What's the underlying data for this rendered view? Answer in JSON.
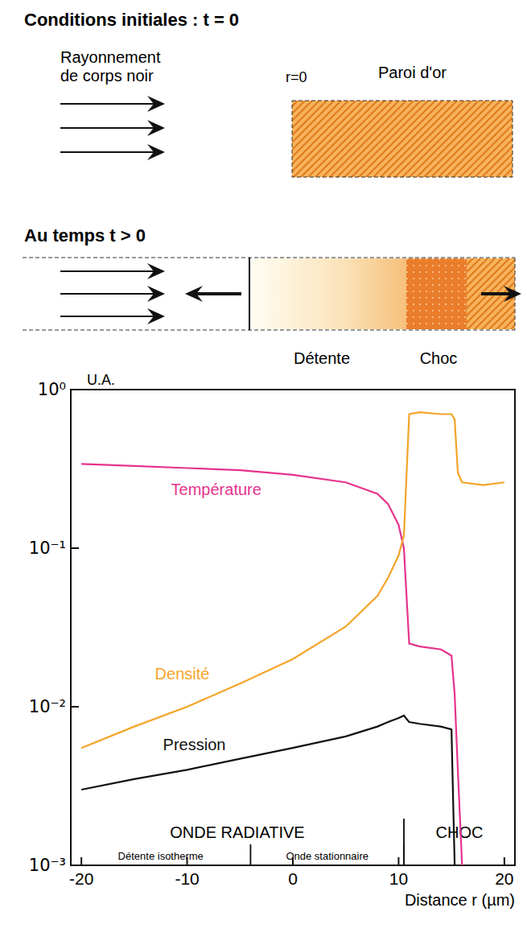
{
  "diagram": {
    "initial_title": "Conditions initiales : t = 0",
    "radiation_label": "Rayonnement de corps noir",
    "origin_label": "r=0",
    "wall_label": "Paroi d'or",
    "later_title": "Au temps t > 0",
    "expansion_label": "Détente",
    "shock_label": "Choc"
  },
  "chart_data": {
    "type": "line",
    "log": "y",
    "grid": false,
    "y_label": "U.A.",
    "x_label": "Distance r (µm)",
    "xlim": [
      -21,
      21
    ],
    "xticks": [
      -20,
      -10,
      0,
      10,
      20
    ],
    "ylim": [
      0.001,
      1
    ],
    "yticks": [
      {
        "value": 1,
        "label": "10⁰"
      },
      {
        "value": 0.1,
        "label": "10⁻¹"
      },
      {
        "value": 0.01,
        "label": "10⁻²"
      },
      {
        "value": 0.001,
        "label": "10⁻³"
      }
    ],
    "x": [
      -20,
      -15,
      -10,
      -5,
      0,
      5,
      8,
      9,
      10,
      10.5,
      11,
      12,
      14,
      15,
      15.3,
      15.6,
      16,
      18,
      20
    ],
    "series": [
      {
        "name": "Température",
        "color": "#e6338c",
        "line_style": "solid",
        "values": [
          0.34,
          0.33,
          0.32,
          0.31,
          0.29,
          0.26,
          0.22,
          0.19,
          0.14,
          0.1,
          0.025,
          0.024,
          0.023,
          0.021,
          0.012,
          0.004,
          0.001,
          null,
          null
        ]
      },
      {
        "name": "Densité",
        "color": "#f4a42a",
        "line_style": "solid",
        "values": [
          0.0055,
          0.0075,
          0.01,
          0.014,
          0.02,
          0.032,
          0.05,
          0.065,
          0.09,
          0.12,
          0.7,
          0.72,
          0.7,
          0.7,
          0.65,
          0.3,
          0.26,
          0.25,
          0.26
        ]
      },
      {
        "name": "Pression",
        "color": "#111111",
        "line_style": "solid",
        "values": [
          0.003,
          0.0035,
          0.004,
          0.0047,
          0.0055,
          0.0065,
          0.0075,
          0.008,
          0.0085,
          0.0088,
          0.008,
          0.0078,
          0.0075,
          0.0072,
          0.001,
          null,
          null,
          null,
          null
        ]
      }
    ],
    "regions": [
      {
        "label": "ONDE RADIATIVE",
        "from": -21,
        "to": 10.5
      },
      {
        "label": "CHOC",
        "from": 10.5,
        "to": 21
      }
    ],
    "subregions": [
      {
        "label": "Détente isotherme",
        "from": -21,
        "to": -4
      },
      {
        "label": "Onde stationnaire",
        "from": -4,
        "to": 10.5
      }
    ]
  }
}
